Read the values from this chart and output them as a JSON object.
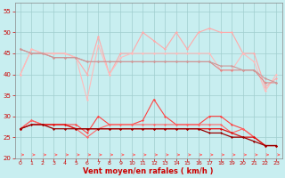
{
  "x": [
    0,
    1,
    2,
    3,
    4,
    5,
    6,
    7,
    8,
    9,
    10,
    11,
    12,
    13,
    14,
    15,
    16,
    17,
    18,
    19,
    20,
    21,
    22,
    23
  ],
  "series": [
    {
      "color": "#ffaaaa",
      "linewidth": 0.8,
      "marker": "D",
      "markersize": 1.5,
      "values": [
        40,
        46,
        45,
        45,
        45,
        44,
        40,
        49,
        40,
        45,
        45,
        50,
        48,
        46,
        50,
        46,
        50,
        51,
        50,
        50,
        45,
        45,
        37,
        39
      ]
    },
    {
      "color": "#ffbbbb",
      "linewidth": 0.8,
      "marker": "D",
      "markersize": 1.5,
      "values": [
        40,
        46,
        45,
        45,
        45,
        44,
        34,
        47,
        40,
        44,
        45,
        45,
        45,
        45,
        45,
        45,
        45,
        45,
        41,
        41,
        45,
        43,
        36,
        40
      ]
    },
    {
      "color": "#dd8888",
      "linewidth": 0.8,
      "marker": "D",
      "markersize": 1.5,
      "values": [
        46,
        45,
        45,
        44,
        44,
        44,
        43,
        43,
        43,
        43,
        43,
        43,
        43,
        43,
        43,
        43,
        43,
        43,
        41,
        41,
        41,
        41,
        38,
        38
      ]
    },
    {
      "color": "#cc9999",
      "linewidth": 0.8,
      "marker": "D",
      "markersize": 1.5,
      "values": [
        46,
        45,
        45,
        44,
        44,
        44,
        43,
        43,
        43,
        43,
        43,
        43,
        43,
        43,
        43,
        43,
        43,
        43,
        42,
        42,
        41,
        41,
        39,
        38
      ]
    },
    {
      "color": "#ff4444",
      "linewidth": 0.8,
      "marker": "D",
      "markersize": 1.5,
      "values": [
        27,
        29,
        28,
        28,
        28,
        28,
        26,
        30,
        28,
        28,
        28,
        29,
        34,
        30,
        28,
        28,
        28,
        30,
        30,
        28,
        27,
        25,
        23,
        23
      ]
    },
    {
      "color": "#ff6666",
      "linewidth": 0.8,
      "marker": "D",
      "markersize": 1.5,
      "values": [
        27,
        29,
        28,
        28,
        28,
        27,
        25,
        27,
        28,
        28,
        28,
        28,
        28,
        28,
        28,
        28,
        28,
        28,
        28,
        26,
        27,
        25,
        23,
        23
      ]
    },
    {
      "color": "#dd1111",
      "linewidth": 0.9,
      "marker": "D",
      "markersize": 1.5,
      "values": [
        27,
        28,
        28,
        28,
        28,
        27,
        27,
        27,
        27,
        27,
        27,
        27,
        27,
        27,
        27,
        27,
        27,
        27,
        27,
        26,
        25,
        25,
        23,
        23
      ]
    },
    {
      "color": "#990000",
      "linewidth": 0.9,
      "marker": "D",
      "markersize": 1.5,
      "values": [
        27,
        28,
        28,
        27,
        27,
        27,
        27,
        27,
        27,
        27,
        27,
        27,
        27,
        27,
        27,
        27,
        27,
        26,
        26,
        25,
        25,
        24,
        23,
        23
      ]
    }
  ],
  "xlabel": "Vent moyen/en rafales ( km/h )",
  "ylim": [
    20,
    57
  ],
  "xlim": [
    -0.5,
    23.5
  ],
  "yticks": [
    20,
    25,
    30,
    35,
    40,
    45,
    50,
    55
  ],
  "xticks": [
    0,
    1,
    2,
    3,
    4,
    5,
    6,
    7,
    8,
    9,
    10,
    11,
    12,
    13,
    14,
    15,
    16,
    17,
    18,
    19,
    20,
    21,
    22,
    23
  ],
  "bg_color": "#c8eef0",
  "grid_color": "#a0cece",
  "tick_color": "#cc0000",
  "label_color": "#cc0000",
  "arrow_color": "#ff6666",
  "spine_color": "#888888"
}
